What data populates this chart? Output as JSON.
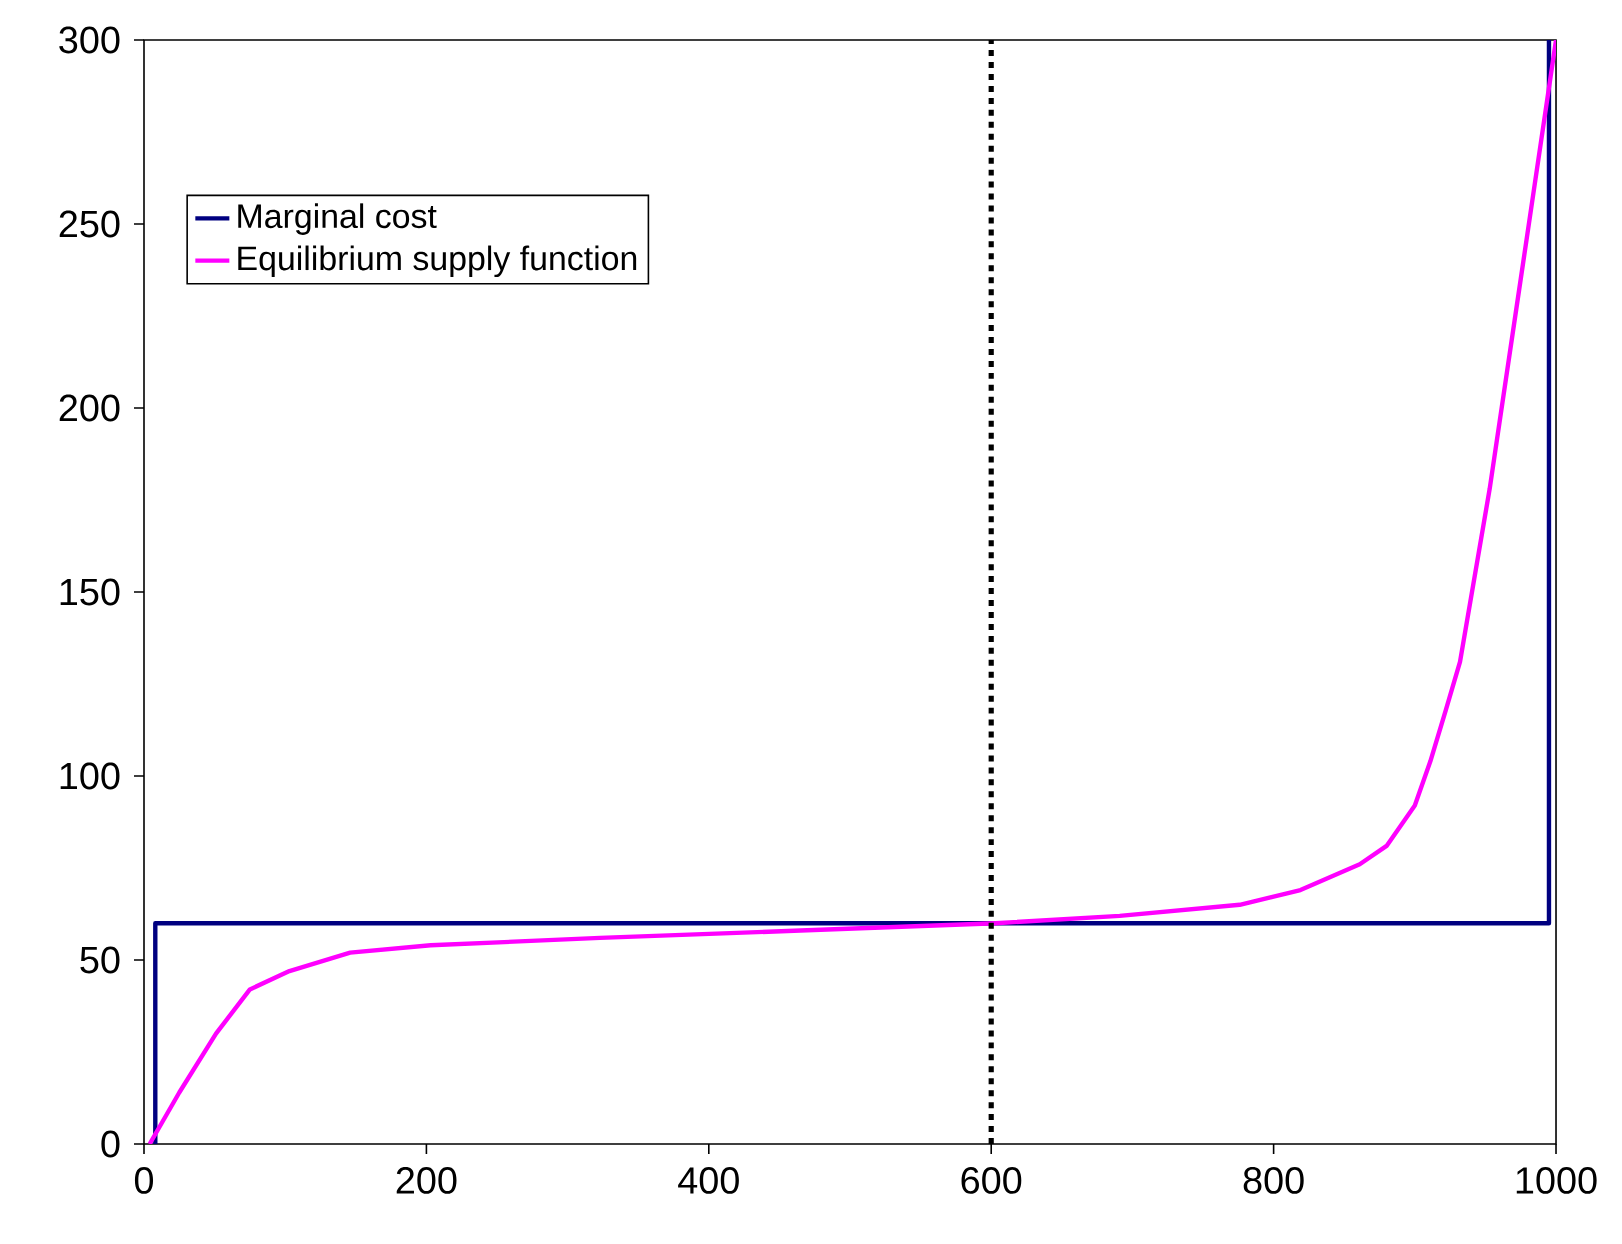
{
  "chart_data": {
    "type": "line",
    "xlim": [
      0,
      1000
    ],
    "ylim": [
      0,
      300
    ],
    "xticks": [
      0,
      200,
      400,
      600,
      800,
      1000
    ],
    "yticks": [
      0,
      50,
      100,
      150,
      200,
      250,
      300
    ],
    "grid": false,
    "legend": "top left",
    "marker": "none",
    "series": [
      {
        "name": "Marginal cost",
        "color": "#000080",
        "line_style": "solid",
        "x": [
          8,
          8,
          995,
          995
        ],
        "values": [
          0,
          60,
          60,
          300
        ]
      },
      {
        "name": "Equilibrium supply function",
        "color": "#ff00ff",
        "line_style": "solid",
        "x": [
          4,
          25,
          51,
          75,
          103,
          146,
          203,
          323,
          465,
          603,
          691,
          776,
          819,
          861,
          880,
          900,
          911,
          922,
          932,
          953,
          975,
          1000
        ],
        "values": [
          0,
          14,
          30,
          42,
          47,
          52,
          54,
          56,
          58,
          60,
          62,
          65,
          69,
          76,
          81,
          92,
          104,
          118,
          131,
          178,
          235,
          300
        ]
      }
    ],
    "ref_lines": [
      {
        "axis": "x",
        "value": 600,
        "color": "#000000",
        "line_style": "dotted"
      }
    ]
  }
}
